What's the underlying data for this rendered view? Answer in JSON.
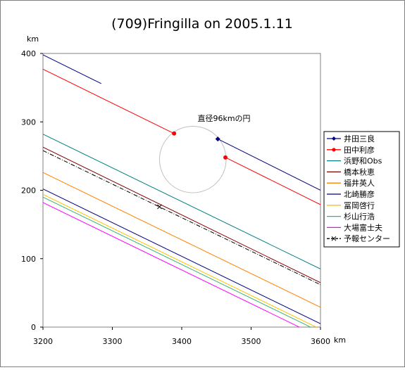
{
  "chart_data": {
    "type": "line",
    "title": "(709)Fringilla on 2005.1.11",
    "xlabel": "km",
    "ylabel": "km",
    "xlim": [
      3200,
      3600
    ],
    "ylim": [
      0,
      400
    ],
    "x_ticks": [
      "3200",
      "3300",
      "3400",
      "3500",
      "3600"
    ],
    "y_ticks": [
      "0",
      "100",
      "200",
      "300",
      "400"
    ],
    "grid": false,
    "legend_position": "right",
    "annotation": "直径96kmの円",
    "circle": {
      "center": [
        3416,
        245
      ],
      "radius_km": 48,
      "color": "#c0c0c0"
    },
    "series": [
      {
        "name": "井田三良",
        "color": "#000080",
        "marker": "diamond",
        "segments": [
          [
            [
              3200,
              398
            ],
            [
              3284,
              356
            ]
          ],
          [
            [
              3452,
              275
            ],
            [
              3604,
              198
            ]
          ]
        ],
        "points": [
          [
            3452,
            275
          ]
        ]
      },
      {
        "name": "田中利彦",
        "color": "#ff0000",
        "marker": "circle",
        "segments": [
          [
            [
              3200,
              377
            ],
            [
              3389,
              283
            ]
          ],
          [
            [
              3463,
              248
            ],
            [
              3604,
              177
            ]
          ]
        ],
        "points": [
          [
            3389,
            283
          ],
          [
            3463,
            248
          ]
        ]
      },
      {
        "name": "浜野和Obs",
        "color": "#008080",
        "marker": "none",
        "segments": [
          [
            [
              3200,
              282
            ],
            [
              3604,
              83
            ]
          ]
        ]
      },
      {
        "name": "橋本秋恵",
        "color": "#800000",
        "marker": "none",
        "segments": [
          [
            [
              3200,
              263
            ],
            [
              3604,
              63
            ]
          ]
        ]
      },
      {
        "name": "福井英人",
        "color": "#ff8000",
        "marker": "none",
        "segments": [
          [
            [
              3200,
              226
            ],
            [
              3604,
              27
            ]
          ]
        ]
      },
      {
        "name": "北崎勝彦",
        "color": "#000080",
        "marker": "none",
        "segments": [
          [
            [
              3200,
              202
            ],
            [
              3604,
              3
            ]
          ]
        ]
      },
      {
        "name": "冨岡啓行",
        "color": "#ffbf00",
        "marker": "none",
        "segments": [
          [
            [
              3200,
              194
            ],
            [
              3604,
              -5
            ]
          ]
        ]
      },
      {
        "name": "杉山行浩",
        "color": "#3cb371",
        "marker": "none",
        "segments": [
          [
            [
              3200,
              190
            ],
            [
              3604,
              -9
            ]
          ]
        ]
      },
      {
        "name": "大場富士夫",
        "color": "#ff00ff",
        "marker": "none",
        "segments": [
          [
            [
              3200,
              182
            ],
            [
              3604,
              -17
            ]
          ]
        ]
      },
      {
        "name": "予報センター",
        "color": "#000000",
        "marker": "cross",
        "dashed": true,
        "segments": [
          [
            [
              3200,
              258
            ],
            [
              3604,
              60
            ]
          ]
        ],
        "points": [
          [
            3368,
            176
          ]
        ]
      }
    ]
  }
}
